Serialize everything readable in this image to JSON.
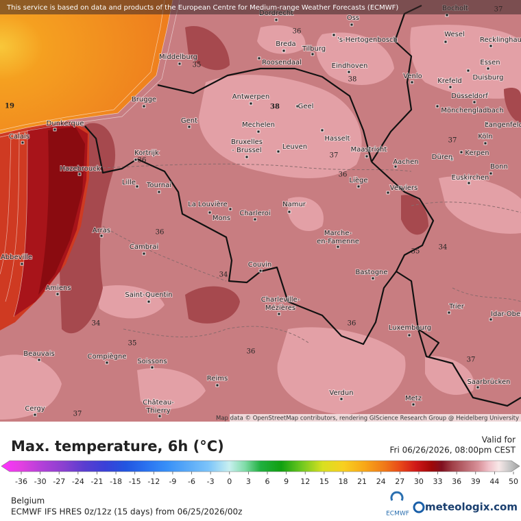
{
  "banner": "This service is based on data and products of the European Centre for Medium-range Weather Forecasts (ECMWF)",
  "attribution": "Map data © OpenStreetMap contributors, rendering GIScience Research Group @ Heidelberg University",
  "cities": [
    "Dordrecht",
    "Oss",
    "Bocholt",
    "Breda",
    "Tilburg",
    "'s-Hertogenbosch",
    "Wesel",
    "Recklinghausen",
    "Middelburg",
    "Roosendaal",
    "Eindhoven",
    "Venlo",
    "Essen",
    "Duisburg",
    "Krefeld",
    "Brugge",
    "Antwerpen",
    "Geel",
    "Düsseldorf",
    "Mönchengladbach",
    "Gent",
    "Mechelen",
    "Langenfeld",
    "Dunkerque",
    "Calais",
    "Hasselt",
    "Köln",
    [
      "Bruxelles",
      "- Brussel"
    ],
    "Leuven",
    "Maastricht",
    "Kortrijk",
    "Düren",
    "Kerpen",
    "Aachen",
    "Bonn",
    "Hazebrouck",
    "Liège",
    "Euskirchen",
    "Lille",
    "Tournai",
    "Verviers",
    "La Louvière",
    "Namur",
    "Mons",
    "Charleroi",
    "Arras",
    [
      "Marche-",
      "en-Famenne"
    ],
    "Cambrai",
    "Abbeville",
    "Couvin",
    "Bastogne",
    "Amiens",
    "Saint-Quentin",
    [
      "Charleville-",
      "Mézières"
    ],
    "Trier",
    "Idar-Oberstein",
    "Luxembourg",
    "Beauvais",
    "Compiègne",
    "Soissons",
    "Saarbrücken",
    "Reims",
    "Verdun",
    "Metz",
    [
      "Château-",
      "Thierry"
    ],
    "Cergy"
  ],
  "contour_labels": [
    36,
    37,
    35,
    38,
    38,
    19,
    37,
    36,
    37,
    36,
    36,
    34,
    35,
    34,
    34,
    35,
    36,
    36,
    37,
    37
  ],
  "legend": {
    "title": "Max. temperature, 6h (°C)",
    "valid_label": "Valid for",
    "valid_time": "Fri 06/26/2026, 08:00pm CEST",
    "ticks": [
      -36,
      -30,
      -27,
      -24,
      -21,
      -18,
      -15,
      -12,
      -9,
      -6,
      -3,
      0,
      3,
      6,
      9,
      12,
      15,
      18,
      21,
      24,
      27,
      30,
      33,
      36,
      39,
      44,
      50
    ]
  },
  "footer": {
    "region": "Belgium",
    "model": "ECMWF IFS HRES 0z/12z (15 days) from 06/25/2026/00z",
    "ecmwf_logo": "ECMWF",
    "brand": "meteologix.com"
  }
}
